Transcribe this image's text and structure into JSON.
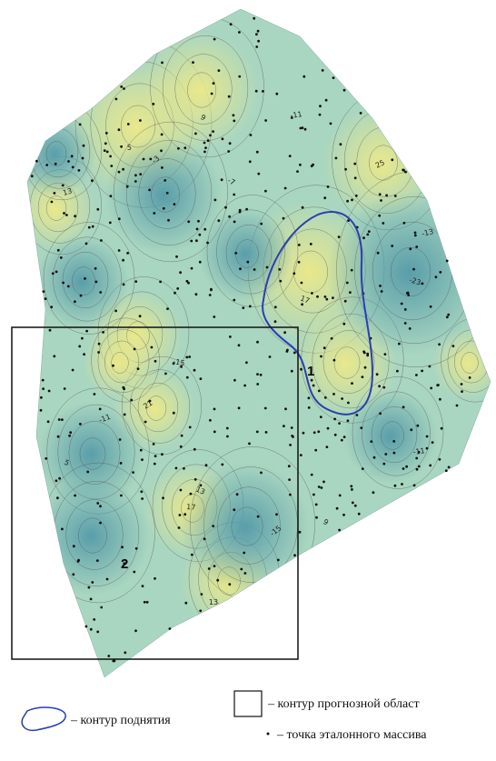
{
  "map_labels": {
    "area_1": "1",
    "area_2": "2"
  },
  "contour_labels": [
    "-3",
    "5",
    "9",
    "-11",
    "-7",
    "13",
    "17",
    "-11",
    "-23",
    "25",
    "-15",
    "21",
    "17",
    "-15",
    "13",
    "9",
    "-11",
    "5",
    "-13",
    "13"
  ],
  "legend": {
    "uplift": "– контур поднятия",
    "forecast": "– контур прогнозной област",
    "reference": "– точка эталонного массива"
  }
}
